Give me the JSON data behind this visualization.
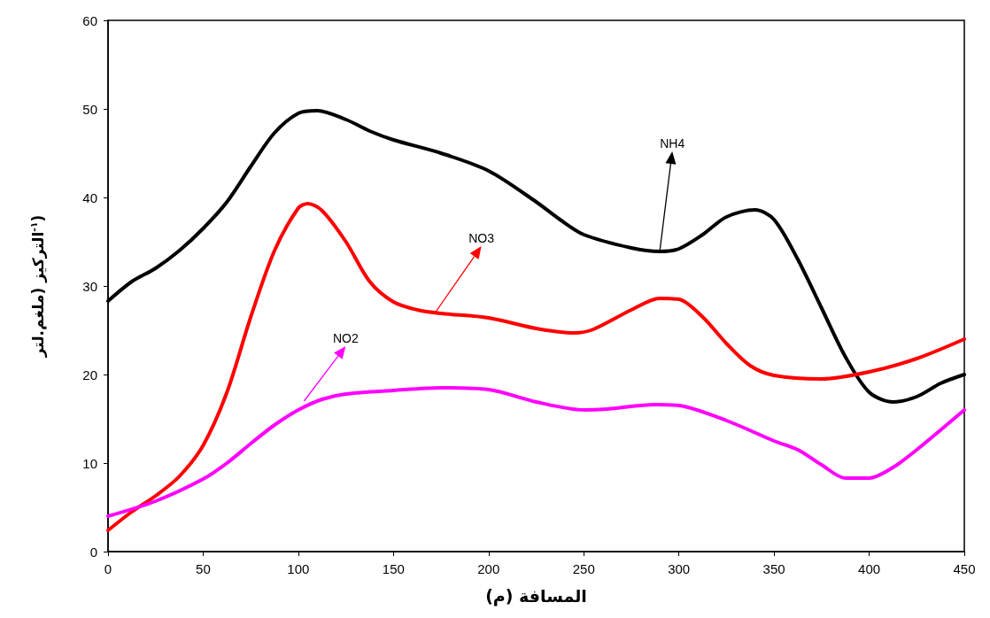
{
  "chart_data": {
    "type": "line",
    "xlabel": "المسافة (م)",
    "ylabel": "التركيز (ملغم.لتر$^{-١}$)",
    "xlim": [
      0,
      450
    ],
    "xticks": [
      0,
      50,
      100,
      150,
      200,
      250,
      300,
      350,
      400,
      450
    ],
    "ylim": [
      0,
      60
    ],
    "yticks": [
      0,
      10,
      20,
      30,
      40,
      50,
      60
    ],
    "grid": false,
    "marker": "none",
    "line_style": "solid",
    "series": [
      {
        "color": "#000000",
        "x": [
          0,
          12.5,
          25,
          37.5,
          50,
          62.5,
          75,
          87.5,
          100,
          110,
          125,
          137.5,
          150,
          175,
          200,
          225,
          237.5,
          250,
          275,
          290,
          300,
          312.5,
          325,
          340,
          350,
          362.5,
          375,
          387.5,
          400,
          412.5,
          425,
          437.5,
          450
        ],
        "values": [
          28.3,
          30.5,
          32,
          34,
          36.5,
          39.5,
          43.5,
          47.3,
          49.5,
          49.8,
          48.8,
          47.5,
          46.5,
          45,
          43,
          39.5,
          37.5,
          35.8,
          34.3,
          33.9,
          34.2,
          35.8,
          37.8,
          38.6,
          37.5,
          33,
          27.5,
          22,
          18,
          16.9,
          17.5,
          19,
          20
        ]
      },
      {
        "color": "#ff0000",
        "x": [
          0,
          12.5,
          25,
          37.5,
          50,
          62.5,
          75,
          87.5,
          100,
          105,
          112.5,
          125,
          137.5,
          150,
          162.5,
          175,
          200,
          225,
          245,
          255,
          275,
          290,
          300,
          312.5,
          325,
          337.5,
          350,
          375,
          400,
          425,
          450
        ],
        "values": [
          2.4,
          4.5,
          6.3,
          8.5,
          12,
          18,
          26.5,
          34,
          38.8,
          39.3,
          38.5,
          35,
          30.5,
          28.2,
          27.3,
          26.9,
          26.4,
          25.2,
          24.7,
          25.1,
          27.3,
          28.6,
          28.5,
          26.5,
          23.5,
          21,
          19.9,
          19.5,
          20.3,
          21.8,
          24
        ]
      },
      {
        "color": "#ff00ff",
        "x": [
          0,
          25,
          50,
          62.5,
          75,
          87.5,
          100,
          112.5,
          125,
          150,
          175,
          200,
          225,
          250,
          262.5,
          287.5,
          300,
          325,
          350,
          362.5,
          375,
          387.5,
          400,
          412.5,
          425,
          450
        ],
        "values": [
          4,
          5.7,
          8.2,
          10,
          12.2,
          14.3,
          16,
          17.2,
          17.8,
          18.2,
          18.5,
          18.3,
          16.9,
          16,
          16.1,
          16.6,
          16.5,
          14.8,
          12.5,
          11.5,
          9.8,
          8.3,
          8.3,
          9.5,
          11.5,
          16
        ]
      }
    ],
    "annotations": [
      {
        "text": "NH4",
        "x": 290,
        "y": 34
      },
      {
        "text": "NO3",
        "x": 172,
        "y": 27
      },
      {
        "text": "NO2",
        "x": 103,
        "y": 17
      }
    ]
  }
}
